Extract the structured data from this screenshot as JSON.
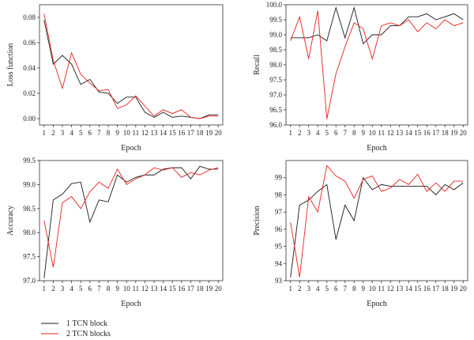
{
  "legend": {
    "items": [
      {
        "label": "1 TCN block",
        "color": "#1a1a1a"
      },
      {
        "label": "2 TCN blocks",
        "color": "#e8211c"
      }
    ]
  },
  "chart_data": [
    {
      "type": "line",
      "ylabel": "Loss function",
      "xlabel": "Epoch",
      "ylim": [
        -0.005,
        0.09
      ],
      "yticks": [
        0.0,
        0.02,
        0.04,
        0.06,
        0.08
      ],
      "ytick_labels": [
        "0.00",
        "0.02",
        "0.04",
        "0.06",
        "0.08"
      ],
      "x": [
        1,
        2,
        3,
        4,
        5,
        6,
        7,
        8,
        9,
        10,
        11,
        12,
        13,
        14,
        15,
        16,
        17,
        18,
        19,
        20
      ],
      "series": [
        {
          "name": "1 TCN block",
          "color": "#1a1a1a",
          "values": [
            0.078,
            0.043,
            0.05,
            0.043,
            0.027,
            0.031,
            0.021,
            0.02,
            0.012,
            0.017,
            0.017,
            0.005,
            0.001,
            0.005,
            0.001,
            0.002,
            0.001,
            0.0,
            0.003,
            0.003
          ]
        },
        {
          "name": "2 TCN blocks",
          "color": "#e8211c",
          "values": [
            0.083,
            0.046,
            0.024,
            0.052,
            0.035,
            0.028,
            0.022,
            0.023,
            0.008,
            0.011,
            0.018,
            0.01,
            0.002,
            0.007,
            0.004,
            0.007,
            0.001,
            0.0,
            0.002,
            0.002
          ]
        }
      ]
    },
    {
      "type": "line",
      "ylabel": "Recall",
      "xlabel": "Epoch",
      "ylim": [
        96.0,
        100.0
      ],
      "yticks": [
        96.0,
        96.5,
        97.0,
        97.5,
        98.0,
        98.5,
        99.0,
        99.5,
        100.0
      ],
      "ytick_labels": [
        "96.0",
        "96.5",
        "97.0",
        "97.5",
        "98.0",
        "98.5",
        "99.0",
        "99.5",
        "100.0"
      ],
      "x": [
        1,
        2,
        3,
        4,
        5,
        6,
        7,
        8,
        9,
        10,
        11,
        12,
        13,
        14,
        15,
        16,
        17,
        18,
        19,
        20
      ],
      "series": [
        {
          "name": "1 TCN block",
          "color": "#1a1a1a",
          "values": [
            98.9,
            98.9,
            98.9,
            99.0,
            98.8,
            99.9,
            98.9,
            99.9,
            98.7,
            99.0,
            99.0,
            99.3,
            99.3,
            99.6,
            99.6,
            99.7,
            99.5,
            99.6,
            99.7,
            99.5
          ]
        },
        {
          "name": "2 TCN blocks",
          "color": "#e8211c",
          "values": [
            98.8,
            99.6,
            98.2,
            99.8,
            96.2,
            97.7,
            98.6,
            99.4,
            99.2,
            98.2,
            99.3,
            99.4,
            99.3,
            99.5,
            99.1,
            99.4,
            99.2,
            99.5,
            99.3,
            99.4
          ]
        }
      ]
    },
    {
      "type": "line",
      "ylabel": "Accuracy",
      "xlabel": "Epoch",
      "ylim": [
        97.0,
        99.5
      ],
      "yticks": [
        97.0,
        97.5,
        98.0,
        98.5,
        99.0,
        99.5
      ],
      "ytick_labels": [
        "97.0",
        "97.5",
        "98.0",
        "98.5",
        "99.0",
        "99.5"
      ],
      "x": [
        1,
        2,
        3,
        4,
        5,
        6,
        7,
        8,
        9,
        10,
        11,
        12,
        13,
        14,
        15,
        16,
        17,
        18,
        19,
        20
      ],
      "series": [
        {
          "name": "1 TCN block",
          "color": "#1a1a1a",
          "values": [
            97.05,
            98.68,
            98.8,
            99.02,
            99.05,
            98.22,
            98.68,
            98.64,
            99.2,
            99.05,
            99.15,
            99.2,
            99.2,
            99.32,
            99.35,
            99.35,
            99.12,
            99.38,
            99.32,
            99.32
          ]
        },
        {
          "name": "2 TCN blocks",
          "color": "#e8211c",
          "values": [
            98.25,
            97.28,
            98.62,
            98.75,
            98.5,
            98.85,
            99.05,
            98.92,
            99.32,
            99.0,
            99.12,
            99.2,
            99.35,
            99.3,
            99.35,
            99.15,
            99.25,
            99.2,
            99.3,
            99.35
          ]
        }
      ]
    },
    {
      "type": "line",
      "ylabel": "Precision",
      "xlabel": "Epoch",
      "ylim": [
        93.0,
        100.0
      ],
      "yticks": [
        93,
        94,
        95,
        96,
        97,
        98,
        99
      ],
      "ytick_labels": [
        "93",
        "94",
        "95",
        "96",
        "97",
        "98",
        "99"
      ],
      "x": [
        1,
        2,
        3,
        4,
        5,
        6,
        7,
        8,
        9,
        10,
        11,
        12,
        13,
        14,
        15,
        16,
        17,
        18,
        19,
        20
      ],
      "series": [
        {
          "name": "1 TCN block",
          "color": "#1a1a1a",
          "values": [
            93.2,
            97.4,
            97.7,
            98.2,
            98.6,
            95.4,
            97.4,
            96.5,
            99.0,
            98.3,
            98.6,
            98.5,
            98.5,
            98.5,
            98.5,
            98.5,
            98.0,
            98.6,
            98.3,
            98.7
          ]
        },
        {
          "name": "2 TCN blocks",
          "color": "#e8211c",
          "values": [
            96.4,
            93.2,
            97.9,
            97.0,
            99.7,
            99.1,
            98.8,
            97.8,
            98.9,
            99.1,
            98.2,
            98.4,
            98.9,
            98.6,
            99.2,
            98.2,
            98.7,
            98.2,
            98.8,
            98.8
          ]
        }
      ]
    }
  ]
}
